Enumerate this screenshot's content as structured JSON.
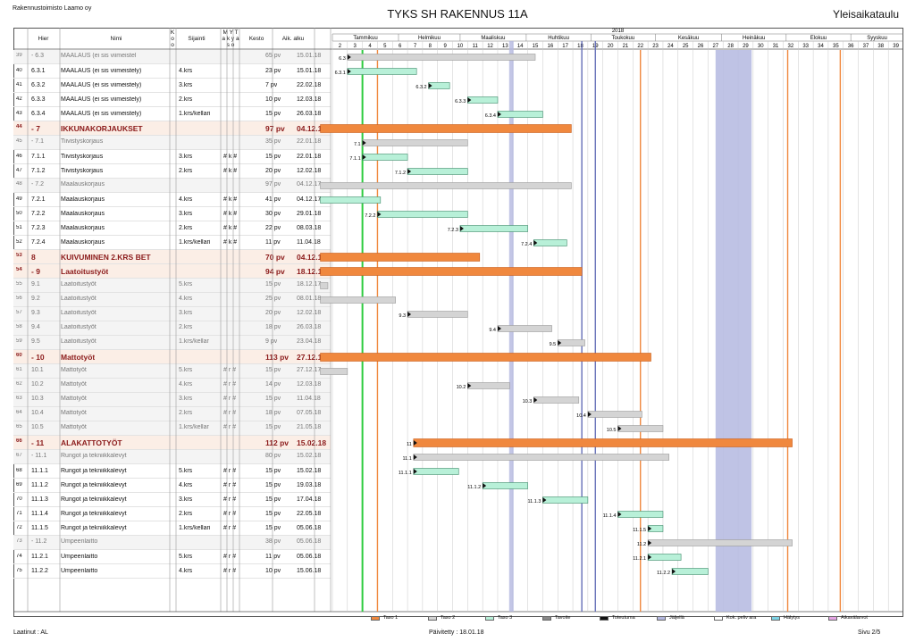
{
  "header": {
    "company": "Rakennustoimisto Laamo oy",
    "title": "TYKS SH RAKENNUS 11A",
    "subtitle": "Yleisaikataulu"
  },
  "columns": {
    "hier": "Hier",
    "nimi": "Nimi",
    "ko": "K o o",
    "sijainti": "Sijainti",
    "myt": "M Y T a k y a s o",
    "kesto": "Kesto",
    "alku": "Aik. alku"
  },
  "chart_data": {
    "type": "gantt",
    "year_label": "2018",
    "months": [
      "Tammikuu",
      "Helmikuu",
      "Maaliskuu",
      "Huhtikuu",
      "Toukokuu",
      "Kesäkuu",
      "Heinäkuu",
      "Elokuu",
      "Syyskuu"
    ],
    "weeks": [
      "2",
      "3",
      "4",
      "5",
      "6",
      "7",
      "8",
      "9",
      "10",
      "11",
      "12",
      "13",
      "14",
      "15",
      "16",
      "17",
      "18",
      "19",
      "20",
      "21",
      "22",
      "23",
      "24",
      "25",
      "26",
      "27",
      "28",
      "29",
      "30",
      "31",
      "32",
      "33",
      "34",
      "35",
      "36",
      "37",
      "38",
      "39"
    ],
    "rows": [
      {
        "n": "39",
        "hier": "- 6.3",
        "name": "MAALAUS (ei sis viimeistel",
        "loc": "",
        "flags": "",
        "dur": "65 pv",
        "start": "15.01.18",
        "level": "mid",
        "bar_label": "6.3",
        "bar_start_week": 3,
        "bar_end_week": 15.5,
        "style": "grey"
      },
      {
        "n": "40",
        "hier": "6.3.1",
        "name": "MAALAUS (ei sis viimeistely)",
        "loc": "4.krs",
        "flags": "",
        "dur": "23 pv",
        "start": "15.01.18",
        "level": "task",
        "bar_label": "6.3.1",
        "bar_start_week": 3,
        "bar_end_week": 7.6,
        "style": "green"
      },
      {
        "n": "41",
        "hier": "6.3.2",
        "name": "MAALAUS (ei sis viimeistely)",
        "loc": "3.krs",
        "flags": "",
        "dur": "7 pv",
        "start": "22.02.18",
        "level": "task",
        "bar_label": "6.3.2",
        "bar_start_week": 8.4,
        "bar_end_week": 9.8,
        "style": "green"
      },
      {
        "n": "42",
        "hier": "6.3.3",
        "name": "MAALAUS (ei sis viimeistely)",
        "loc": "2.krs",
        "flags": "",
        "dur": "10 pv",
        "start": "12.03.18",
        "level": "task",
        "bar_label": "6.3.3",
        "bar_start_week": 11,
        "bar_end_week": 13,
        "style": "green"
      },
      {
        "n": "43",
        "hier": "6.3.4",
        "name": "MAALAUS (ei sis viimeistely)",
        "loc": "1.krs/kellari",
        "flags": "",
        "dur": "15 pv",
        "start": "26.03.18",
        "level": "task",
        "bar_label": "6.3.4",
        "bar_start_week": 13,
        "bar_end_week": 16,
        "style": "green"
      },
      {
        "n": "44",
        "hier": "- 7",
        "name": "IKKUNAKORJAUKSET",
        "loc": "",
        "flags": "",
        "dur": "97 pv",
        "start": "04.12.17",
        "level": "big",
        "bar_label": "",
        "bar_start_week": 1.2,
        "bar_end_week": 17.9,
        "style": "orange"
      },
      {
        "n": "45",
        "hier": "- 7.1",
        "name": "Tiivistyskorjaus",
        "loc": "",
        "flags": "",
        "dur": "35 pv",
        "start": "22.01.18",
        "level": "mid",
        "bar_label": "7.1",
        "bar_start_week": 4,
        "bar_end_week": 11,
        "style": "grey"
      },
      {
        "n": "46",
        "hier": "7.1.1",
        "name": "Tiivistyskorjaus",
        "loc": "3.krs",
        "flags": "# k #",
        "dur": "15 pv",
        "start": "22.01.18",
        "level": "task",
        "bar_label": "7.1.1",
        "bar_start_week": 4,
        "bar_end_week": 7,
        "style": "green"
      },
      {
        "n": "47",
        "hier": "7.1.2",
        "name": "Tiivistyskorjaus",
        "loc": "2.krs",
        "flags": "# k #",
        "dur": "20 pv",
        "start": "12.02.18",
        "level": "task",
        "bar_label": "7.1.2",
        "bar_start_week": 7,
        "bar_end_week": 11,
        "style": "green"
      },
      {
        "n": "48",
        "hier": "- 7.2",
        "name": "Maalauskorjaus",
        "loc": "",
        "flags": "",
        "dur": "97 pv",
        "start": "04.12.17",
        "level": "mid",
        "bar_label": "",
        "bar_start_week": 1.2,
        "bar_end_week": 17.9,
        "style": "grey"
      },
      {
        "n": "49",
        "hier": "7.2.1",
        "name": "Maalauskorjaus",
        "loc": "4.krs",
        "flags": "# k #",
        "dur": "41 pv",
        "start": "04.12.17",
        "level": "task",
        "bar_label": "",
        "bar_start_week": 1.2,
        "bar_end_week": 5.2,
        "style": "green"
      },
      {
        "n": "50",
        "hier": "7.2.2",
        "name": "Maalauskorjaus",
        "loc": "3.krs",
        "flags": "# k #",
        "dur": "30 pv",
        "start": "29.01.18",
        "level": "task",
        "bar_label": "7.2.2",
        "bar_start_week": 5,
        "bar_end_week": 11,
        "style": "green"
      },
      {
        "n": "51",
        "hier": "7.2.3",
        "name": "Maalauskorjaus",
        "loc": "2.krs",
        "flags": "# k #",
        "dur": "22 pv",
        "start": "08.03.18",
        "level": "task",
        "bar_label": "7.2.3",
        "bar_start_week": 10.5,
        "bar_end_week": 15,
        "style": "green"
      },
      {
        "n": "52",
        "hier": "7.2.4",
        "name": "Maalauskorjaus",
        "loc": "1.krs/kellari",
        "flags": "# k #",
        "dur": "11 pv",
        "start": "11.04.18",
        "level": "task",
        "bar_label": "7.2.4",
        "bar_start_week": 15.4,
        "bar_end_week": 17.6,
        "style": "green"
      },
      {
        "n": "53",
        "hier": "8",
        "name": "KUIVUMINEN 2.KRS BET",
        "loc": "",
        "flags": "",
        "dur": "70 pv",
        "start": "04.12.17",
        "level": "big",
        "bar_label": "",
        "bar_start_week": 1.2,
        "bar_end_week": 11.8,
        "style": "orange"
      },
      {
        "n": "54",
        "hier": "- 9",
        "name": "Laatoitustyöt",
        "loc": "",
        "flags": "",
        "dur": "94 pv",
        "start": "18.12.17",
        "level": "big",
        "bar_label": "",
        "bar_start_week": 1.2,
        "bar_end_week": 18.6,
        "style": "orange"
      },
      {
        "n": "55",
        "hier": "9.1",
        "name": "Laatoitustyöt",
        "loc": "5.krs",
        "flags": "",
        "dur": "15 pv",
        "start": "18.12.17",
        "level": "mid",
        "bar_label": "",
        "bar_start_week": 1.2,
        "bar_end_week": 1.7,
        "style": "grey"
      },
      {
        "n": "56",
        "hier": "9.2",
        "name": "Laatoitustyöt",
        "loc": "4.krs",
        "flags": "",
        "dur": "25 pv",
        "start": "08.01.18",
        "level": "mid",
        "bar_label": "",
        "bar_start_week": 1.2,
        "bar_end_week": 6.2,
        "style": "grey"
      },
      {
        "n": "57",
        "hier": "9.3",
        "name": "Laatoitustyöt",
        "loc": "3.krs",
        "flags": "",
        "dur": "20 pv",
        "start": "12.02.18",
        "level": "mid",
        "bar_label": "9.3",
        "bar_start_week": 7,
        "bar_end_week": 11,
        "style": "grey"
      },
      {
        "n": "58",
        "hier": "9.4",
        "name": "Laatoitustyöt",
        "loc": "2.krs",
        "flags": "",
        "dur": "18 pv",
        "start": "26.03.18",
        "level": "mid",
        "bar_label": "9.4",
        "bar_start_week": 13,
        "bar_end_week": 16.6,
        "style": "grey"
      },
      {
        "n": "59",
        "hier": "9.5",
        "name": "Laatoitustyöt",
        "loc": "1.krs/kellar",
        "flags": "",
        "dur": "9 pv",
        "start": "23.04.18",
        "level": "mid",
        "bar_label": "9.5",
        "bar_start_week": 17,
        "bar_end_week": 18.8,
        "style": "grey"
      },
      {
        "n": "60",
        "hier": "- 10",
        "name": "Mattotyöt",
        "loc": "",
        "flags": "",
        "dur": "113 pv",
        "start": "27.12.17",
        "level": "big",
        "bar_label": "",
        "bar_start_week": 1.2,
        "bar_end_week": 23.2,
        "style": "orange"
      },
      {
        "n": "61",
        "hier": "10.1",
        "name": "Mattotyöt",
        "loc": "5.krs",
        "flags": "# r #",
        "dur": "15 pv",
        "start": "27.12.17",
        "level": "mid",
        "bar_label": "",
        "bar_start_week": 1.2,
        "bar_end_week": 3,
        "style": "grey"
      },
      {
        "n": "62",
        "hier": "10.2",
        "name": "Mattotyöt",
        "loc": "4.krs",
        "flags": "# r #",
        "dur": "14 pv",
        "start": "12.03.18",
        "level": "mid",
        "bar_label": "10.2",
        "bar_start_week": 11,
        "bar_end_week": 13.8,
        "style": "grey"
      },
      {
        "n": "63",
        "hier": "10.3",
        "name": "Mattotyöt",
        "loc": "3.krs",
        "flags": "# r #",
        "dur": "15 pv",
        "start": "11.04.18",
        "level": "mid",
        "bar_label": "10.3",
        "bar_start_week": 15.4,
        "bar_end_week": 18.4,
        "style": "grey"
      },
      {
        "n": "64",
        "hier": "10.4",
        "name": "Mattotyöt",
        "loc": "2.krs",
        "flags": "# r #",
        "dur": "18 pv",
        "start": "07.05.18",
        "level": "mid",
        "bar_label": "10.4",
        "bar_start_week": 19,
        "bar_end_week": 22.6,
        "style": "grey"
      },
      {
        "n": "65",
        "hier": "10.5",
        "name": "Mattotyöt",
        "loc": "1.krs/kellar",
        "flags": "# r #",
        "dur": "15 pv",
        "start": "21.05.18",
        "level": "mid",
        "bar_label": "10.5",
        "bar_start_week": 21,
        "bar_end_week": 24,
        "style": "grey"
      },
      {
        "n": "66",
        "hier": "- 11",
        "name": "ALAKATTOTYÖT",
        "loc": "",
        "flags": "",
        "dur": "112 pv",
        "start": "15.02.18",
        "level": "big",
        "bar_label": "11",
        "bar_start_week": 7.4,
        "bar_end_week": 32.6,
        "style": "orange"
      },
      {
        "n": "67",
        "hier": "- 11.1",
        "name": "Rungot ja tekniikkalevyt",
        "loc": "",
        "flags": "",
        "dur": "80 pv",
        "start": "15.02.18",
        "level": "mid",
        "bar_label": "11.1",
        "bar_start_week": 7.4,
        "bar_end_week": 24.4,
        "style": "grey"
      },
      {
        "n": "68",
        "hier": "11.1.1",
        "name": "Rungot ja tekniikkalevyt",
        "loc": "5.krs",
        "flags": "# r #",
        "dur": "15 pv",
        "start": "15.02.18",
        "level": "task",
        "bar_label": "11.1.1",
        "bar_start_week": 7.4,
        "bar_end_week": 10.4,
        "style": "green"
      },
      {
        "n": "69",
        "hier": "11.1.2",
        "name": "Rungot ja tekniikkalevyt",
        "loc": "4.krs",
        "flags": "# r #",
        "dur": "15 pv",
        "start": "19.03.18",
        "level": "task",
        "bar_label": "11.1.2",
        "bar_start_week": 12,
        "bar_end_week": 15,
        "style": "green"
      },
      {
        "n": "70",
        "hier": "11.1.3",
        "name": "Rungot ja tekniikkalevyt",
        "loc": "3.krs",
        "flags": "# r #",
        "dur": "15 pv",
        "start": "17.04.18",
        "level": "task",
        "bar_label": "11.1.3",
        "bar_start_week": 16,
        "bar_end_week": 19,
        "style": "green"
      },
      {
        "n": "71",
        "hier": "11.1.4",
        "name": "Rungot ja tekniikkalevyt",
        "loc": "2.krs",
        "flags": "# r #",
        "dur": "15 pv",
        "start": "22.05.18",
        "level": "task",
        "bar_label": "11.1.4",
        "bar_start_week": 21,
        "bar_end_week": 24,
        "style": "green"
      },
      {
        "n": "72",
        "hier": "11.1.5",
        "name": "Rungot ja tekniikkalevyt",
        "loc": "1.krs/kellari",
        "flags": "# r #",
        "dur": "15 pv",
        "start": "05.06.18",
        "level": "task",
        "bar_label": "11.1.5",
        "bar_start_week": 23,
        "bar_end_week": 24,
        "style": "green"
      },
      {
        "n": "73",
        "hier": "- 11.2",
        "name": "Umpeenlaitto",
        "loc": "",
        "flags": "",
        "dur": "38 pv",
        "start": "05.06.18",
        "level": "mid",
        "bar_label": "11.2",
        "bar_start_week": 23,
        "bar_end_week": 32.6,
        "style": "grey"
      },
      {
        "n": "74",
        "hier": "11.2.1",
        "name": "Umpeenlaitto",
        "loc": "5.krs",
        "flags": "# r #",
        "dur": "11 pv",
        "start": "05.06.18",
        "level": "task",
        "bar_label": "11.2.1",
        "bar_start_week": 23,
        "bar_end_week": 25.2,
        "style": "green"
      },
      {
        "n": "75",
        "hier": "11.2.2",
        "name": "Umpeenlaitto",
        "loc": "4.krs",
        "flags": "# r #",
        "dur": "10 pv",
        "start": "15.06.18",
        "level": "task",
        "bar_label": "11.2.2",
        "bar_start_week": 24.6,
        "bar_end_week": 27,
        "style": "green"
      }
    ],
    "legend": [
      "Taso 1",
      "Taso 2",
      "Taso 3",
      "Tavoite",
      "Toteutuma",
      "Jäljellä",
      "Kok. peliv ara",
      "Hälytys",
      "Aikavälarvot"
    ]
  },
  "colors": {
    "orange": "#f0883e",
    "grey": "#d4d4d4",
    "green": "#b8f0d8",
    "blueband": "#b4b8e0",
    "today": "#2ecc40"
  },
  "footer": {
    "left": "Laatinut : AL",
    "center": "Päivitetty : 18.01.18",
    "right": "Sivu 2/5"
  }
}
